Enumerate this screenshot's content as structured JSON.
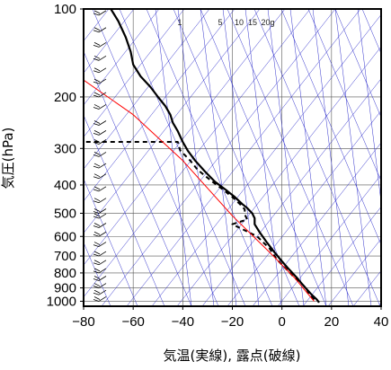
{
  "chart_data": {
    "type": "line",
    "xlabel": "気温(実線), 露点(破線)",
    "ylabel": "気圧(hPa)",
    "xlim": [
      -80,
      40
    ],
    "ylim": [
      1040,
      100
    ],
    "y_scale": "log",
    "grid": true,
    "x_ticks": [
      -80,
      -60,
      -40,
      -20,
      0,
      20,
      40
    ],
    "x_tick_labels": [
      "−80",
      "−60",
      "−40",
      "−20",
      "0",
      "20",
      "40"
    ],
    "y_ticks": [
      100,
      200,
      300,
      400,
      500,
      600,
      700,
      800,
      900,
      1000
    ],
    "y_tick_labels": [
      "100",
      "200",
      "300",
      "400",
      "500",
      "600",
      "700",
      "800",
      "900",
      "1000"
    ],
    "mixing_ratio_labels": [
      "1",
      "5",
      "10",
      "15",
      "20g"
    ],
    "colors": {
      "temperature": "#000000",
      "dewpoint": "#000000",
      "parcel": "#ff0000",
      "isolines": "#3333cc",
      "wind_barbs": "#000000"
    },
    "series": [
      {
        "name": "",
        "line_style": "solid",
        "points": [
          [
            -69,
            100
          ],
          [
            -66,
            110
          ],
          [
            -63,
            125
          ],
          [
            -61,
            140
          ],
          [
            -60,
            155
          ],
          [
            -57,
            170
          ],
          [
            -53,
            185
          ],
          [
            -50,
            200
          ],
          [
            -47,
            215
          ],
          [
            -45,
            230
          ],
          [
            -44,
            245
          ],
          [
            -42,
            262
          ],
          [
            -40,
            285
          ],
          [
            -38,
            305
          ],
          [
            -35,
            330
          ],
          [
            -31,
            360
          ],
          [
            -27,
            390
          ],
          [
            -22,
            420
          ],
          [
            -19,
            440
          ],
          [
            -16,
            465
          ],
          [
            -14,
            480
          ],
          [
            -12,
            500
          ],
          [
            -11,
            520
          ],
          [
            -11,
            545
          ],
          [
            -9,
            580
          ],
          [
            -6,
            630
          ],
          [
            -3,
            680
          ],
          [
            0,
            730
          ],
          [
            3,
            780
          ],
          [
            6,
            830
          ],
          [
            8,
            870
          ],
          [
            10,
            910
          ],
          [
            12,
            950
          ],
          [
            14,
            985
          ],
          [
            15,
            1010
          ]
        ]
      },
      {
        "name": "",
        "line_style": "dashed",
        "points": [
          [
            -79,
            285
          ],
          [
            -42,
            285
          ],
          [
            -41,
            305
          ],
          [
            -37,
            330
          ],
          [
            -34,
            355
          ],
          [
            -28,
            390
          ],
          [
            -23,
            420
          ],
          [
            -20,
            440
          ],
          [
            -17,
            465
          ],
          [
            -15,
            485
          ],
          [
            -15,
            505
          ],
          [
            -14,
            525
          ],
          [
            -20,
            545
          ],
          [
            -10,
            600
          ],
          [
            -5,
            660
          ],
          [
            -2,
            720
          ],
          [
            2,
            780
          ],
          [
            5,
            830
          ],
          [
            8,
            870
          ],
          [
            10,
            910
          ],
          [
            11,
            950
          ],
          [
            13,
            985
          ],
          [
            14,
            1005
          ]
        ]
      },
      {
        "name": "",
        "line_style": "solid-red",
        "points": [
          [
            -80,
            175
          ],
          [
            -60,
            230
          ],
          [
            -40,
            330
          ],
          [
            -20,
            510
          ],
          [
            -5,
            680
          ],
          [
            5,
            830
          ],
          [
            13,
            1000
          ]
        ]
      }
    ],
    "wind_barb_pressures": [
      105,
      120,
      135,
      150,
      165,
      180,
      200,
      220,
      250,
      270,
      290,
      320,
      350,
      380,
      420,
      460,
      500,
      520,
      560,
      600,
      650,
      700,
      750,
      800,
      850,
      900,
      950,
      1000
    ]
  }
}
